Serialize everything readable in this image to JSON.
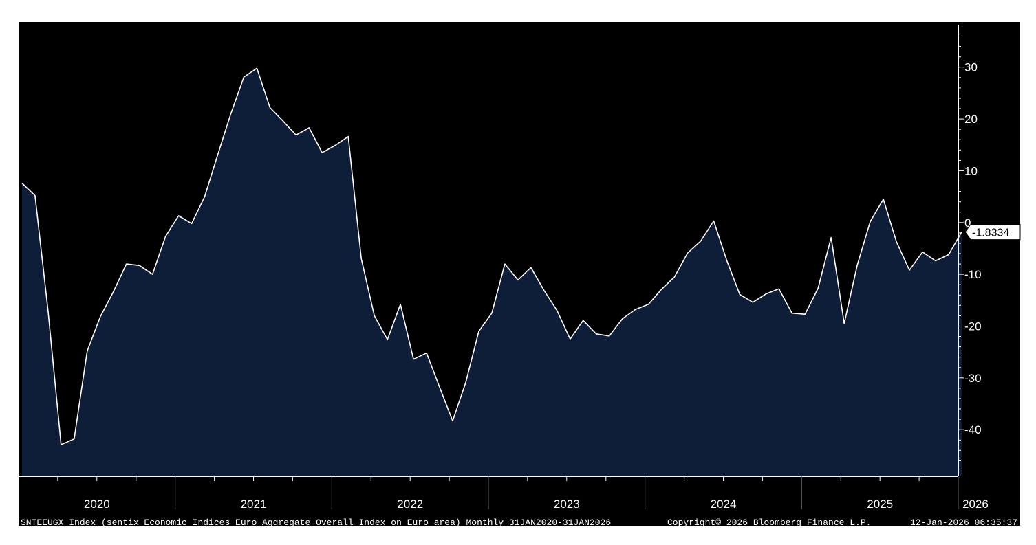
{
  "colors": {
    "background": "#000000",
    "area_fill": "#0e1d38",
    "line": "#ffffff",
    "text": "#ffffff",
    "page": "#ffffff"
  },
  "footer": {
    "description": "SNTEEUGX Index (sentix Economic Indices Euro Aggregate  Overall Index on Euro area) Monthly 31JAN2020-31JAN2026",
    "copyright": "Copyright© 2026 Bloomberg Finance L.P.",
    "timestamp": "12-Jan-2026 06:35:37"
  },
  "last_value_label": "-1.8334",
  "chart_data": {
    "type": "area",
    "title": "",
    "xlabel": "",
    "ylabel": "",
    "ylim": [
      -49,
      37
    ],
    "yticks": [
      30,
      20,
      10,
      0,
      -10,
      -20,
      -30,
      -40
    ],
    "ytick_labels": [
      "30",
      "20",
      "10",
      "0",
      "-10",
      "-20",
      "-30",
      "-40"
    ],
    "year_labels": [
      "2020",
      "2021",
      "2022",
      "2023",
      "2024",
      "2025",
      "2026"
    ],
    "grid": false,
    "legend": "none",
    "y_axis_position": "right",
    "series": [
      {
        "x": [
          "2020-01",
          "2020-02",
          "2020-03",
          "2020-04",
          "2020-05",
          "2020-06",
          "2020-07",
          "2020-08",
          "2020-09",
          "2020-10",
          "2020-11",
          "2020-12",
          "2021-01",
          "2021-02",
          "2021-03",
          "2021-04",
          "2021-05",
          "2021-06",
          "2021-07",
          "2021-08",
          "2021-09",
          "2021-10",
          "2021-11",
          "2021-12",
          "2022-01",
          "2022-02",
          "2022-03",
          "2022-04",
          "2022-05",
          "2022-06",
          "2022-07",
          "2022-08",
          "2022-09",
          "2022-10",
          "2022-11",
          "2022-12",
          "2023-01",
          "2023-02",
          "2023-03",
          "2023-04",
          "2023-05",
          "2023-06",
          "2023-07",
          "2023-08",
          "2023-09",
          "2023-10",
          "2023-11",
          "2023-12",
          "2024-01",
          "2024-02",
          "2024-03",
          "2024-04",
          "2024-05",
          "2024-06",
          "2024-07",
          "2024-08",
          "2024-09",
          "2024-10",
          "2024-11",
          "2024-12",
          "2025-01",
          "2025-02",
          "2025-03",
          "2025-04",
          "2025-05",
          "2025-06",
          "2025-07",
          "2025-08",
          "2025-09",
          "2025-10",
          "2025-11",
          "2025-12",
          "2026-01"
        ],
        "values": [
          7.6,
          5.2,
          -17.1,
          -42.9,
          -41.8,
          -24.8,
          -18.2,
          -13.4,
          -8.0,
          -8.3,
          -10.0,
          -2.7,
          1.3,
          -0.2,
          5.0,
          13.1,
          21.0,
          28.1,
          29.8,
          22.2,
          19.6,
          16.9,
          18.3,
          13.5,
          14.9,
          16.6,
          -7.0,
          -18.0,
          -22.6,
          -15.8,
          -26.4,
          -25.2,
          -31.8,
          -38.3,
          -30.9,
          -21.0,
          -17.5,
          -8.0,
          -11.1,
          -8.7,
          -13.1,
          -17.0,
          -22.5,
          -18.9,
          -21.5,
          -21.9,
          -18.6,
          -16.8,
          -15.8,
          -12.9,
          -10.5,
          -5.9,
          -3.6,
          0.3,
          -7.3,
          -13.9,
          -15.4,
          -13.8,
          -12.8,
          -17.5,
          -17.7,
          -12.7,
          -2.9,
          -19.5,
          -8.2,
          0.2,
          4.5,
          -3.7,
          -9.2,
          -5.7,
          -7.4,
          -6.2,
          -1.8334
        ]
      }
    ]
  }
}
